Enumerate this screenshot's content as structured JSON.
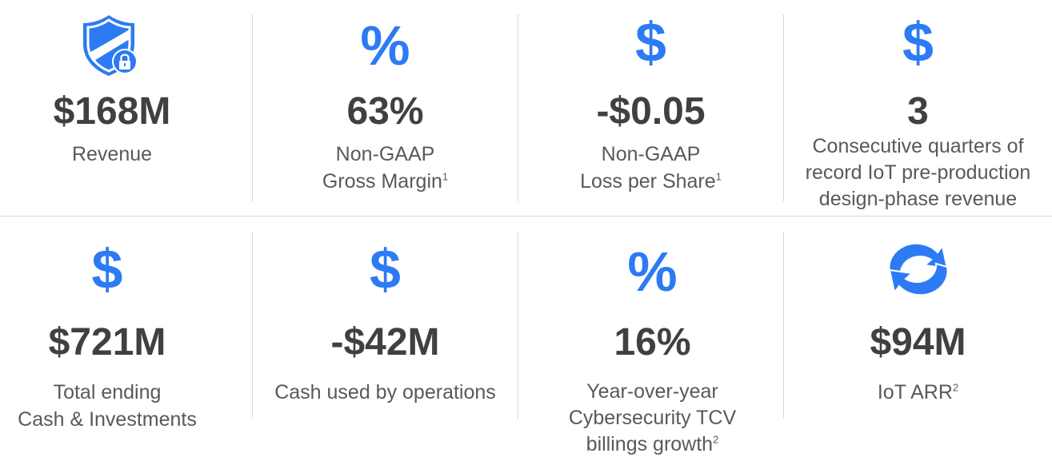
{
  "colors": {
    "accent": "#2d7bf4",
    "value_text": "#404040",
    "label_text": "#595959",
    "divider": "#d6d6d6"
  },
  "metrics": [
    {
      "icon": "shield-lock-icon",
      "value": "$168M",
      "label_lines": [
        "Revenue"
      ],
      "footnote": ""
    },
    {
      "icon": "percent-icon",
      "glyph": "%",
      "value": "63%",
      "label_lines": [
        "Non-GAAP",
        "Gross Margin"
      ],
      "footnote": "1"
    },
    {
      "icon": "dollar-icon",
      "glyph": "$",
      "value": "-$0.05",
      "label_lines": [
        "Non-GAAP",
        "Loss per Share"
      ],
      "footnote": "1"
    },
    {
      "icon": "dollar-icon",
      "glyph": "$",
      "value": "3",
      "label_lines": [
        "Consecutive quarters of",
        "record IoT pre-production",
        "design-phase revenue"
      ],
      "footnote": ""
    },
    {
      "icon": "dollar-icon",
      "glyph": "$",
      "value": "$721M",
      "label_lines": [
        "Total ending",
        "Cash & Investments"
      ],
      "footnote": ""
    },
    {
      "icon": "dollar-icon",
      "glyph": "$",
      "value": "-$42M",
      "label_lines": [
        "Cash used by operations"
      ],
      "footnote": ""
    },
    {
      "icon": "percent-icon",
      "glyph": "%",
      "value": "16%",
      "label_lines": [
        "Year-over-year",
        "Cybersecurity TCV",
        "billings growth"
      ],
      "footnote": "2"
    },
    {
      "icon": "refresh-cycle-icon",
      "value": "$94M",
      "label_lines": [
        "IoT ARR"
      ],
      "footnote": "2"
    }
  ]
}
